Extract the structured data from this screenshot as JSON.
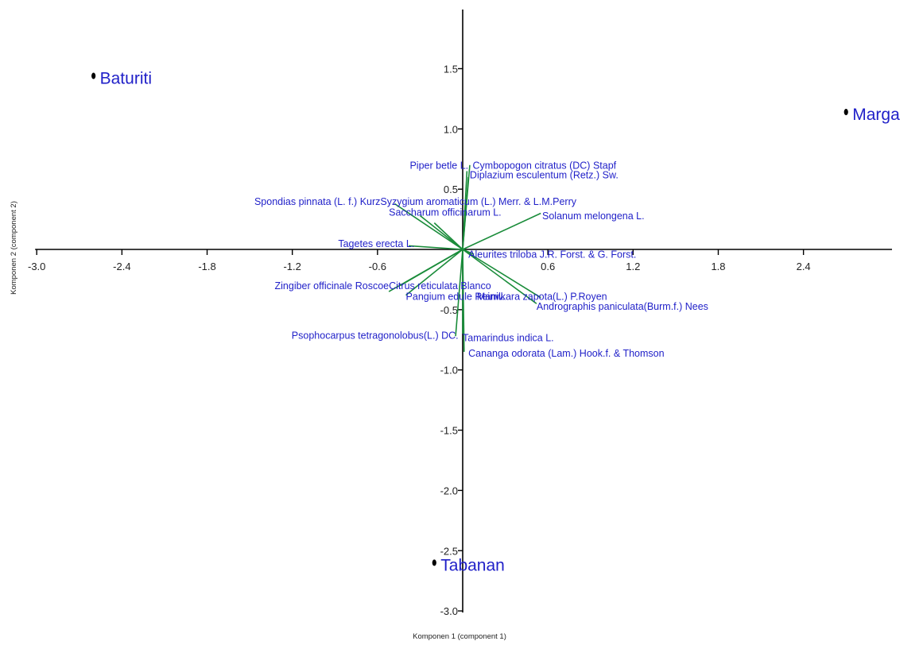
{
  "chart_data": {
    "type": "scatter",
    "title": "",
    "xlabel": "Komponen 1 (component 1)",
    "ylabel": "Komponen 2 (component 2)",
    "xlim": [
      -3.0,
      3.0
    ],
    "ylim": [
      -3.0,
      2.0
    ],
    "x_ticks": [
      -3.0,
      -2.4,
      -1.8,
      -1.2,
      -0.6,
      0.6,
      1.2,
      1.8,
      2.4
    ],
    "x_tick_labels": [
      "-3.0",
      "-2.4",
      "-1.8",
      "-1.2",
      "-0.6",
      "0.6",
      "1.2",
      "1.8",
      "2.4"
    ],
    "y_ticks": [
      1.5,
      1.0,
      0.5,
      -0.5,
      -1.0,
      -1.5,
      -2.0,
      -2.5,
      -3.0
    ],
    "y_tick_labels": [
      "1.5",
      "1.0",
      "0.5",
      "-0.5",
      "-1.0",
      "-1.5",
      "-2.0",
      "-2.5",
      "-3.0"
    ],
    "grid": false,
    "colors": {
      "points": "#000000",
      "labels": "#1f1fc8",
      "vectors": "#1a8c3a",
      "axes": "#000000"
    },
    "points": [
      {
        "label": "Baturiti",
        "x": -2.6,
        "y": 1.44
      },
      {
        "label": "Marga",
        "x": 2.7,
        "y": 1.14
      },
      {
        "label": "Tabanan",
        "x": -0.2,
        "y": -2.6
      }
    ],
    "loadings": [
      {
        "label": "Piper betle L.",
        "x": 0.03,
        "y": 0.65,
        "anchor": "end",
        "lx": 0.04,
        "ly": 0.67
      },
      {
        "label": "Cymbopogon citratus (DC) Stapf",
        "x": 0.05,
        "y": 0.7,
        "anchor": "start",
        "lx": 0.07,
        "ly": 0.67
      },
      {
        "label": "Diplazium esculentum (Retz.) Sw.",
        "x": 0.04,
        "y": 0.6,
        "anchor": "start",
        "lx": 0.05,
        "ly": 0.59
      },
      {
        "label": "Spondias pinnata (L. f.) Kurz",
        "x": -0.48,
        "y": 0.38,
        "anchor": "end",
        "lx": -0.58,
        "ly": 0.37
      },
      {
        "label": "Syzygium aromaticum (L.) Merr. & L.M.Perry",
        "x": -0.3,
        "y": 0.28,
        "anchor": "start",
        "lx": -0.58,
        "ly": 0.37
      },
      {
        "label": "Saccharum officinarum L.",
        "x": -0.2,
        "y": 0.22,
        "anchor": "start",
        "lx": -0.52,
        "ly": 0.28
      },
      {
        "label": "Solanum melongena L.",
        "x": 0.55,
        "y": 0.3,
        "anchor": "start",
        "lx": 0.56,
        "ly": 0.25
      },
      {
        "label": "Tagetes erecta L.",
        "x": -0.38,
        "y": 0.03,
        "anchor": "end",
        "lx": -0.34,
        "ly": 0.02
      },
      {
        "label": "Aleurites triloba J.R. Forst. & G. Forst.",
        "x": 0.08,
        "y": -0.04,
        "anchor": "start",
        "lx": 0.04,
        "ly": -0.07
      },
      {
        "label": "Zingiber officinale Roscoe",
        "x": -0.52,
        "y": -0.35,
        "anchor": "end",
        "lx": -0.52,
        "ly": -0.33
      },
      {
        "label": "Citrus reticulata Blanco",
        "x": -0.44,
        "y": -0.3,
        "anchor": "start",
        "lx": -0.52,
        "ly": -0.33
      },
      {
        "label": "Pangium edule Reinw.",
        "x": -0.4,
        "y": -0.38,
        "anchor": "start",
        "lx": -0.4,
        "ly": -0.42
      },
      {
        "label": "Manilkara zapota(L.) P.Royen",
        "x": 0.55,
        "y": -0.4,
        "anchor": "start",
        "lx": 0.1,
        "ly": -0.42
      },
      {
        "label": "Andrographis paniculata(Burm.f.) Nees",
        "x": 0.52,
        "y": -0.45,
        "anchor": "start",
        "lx": 0.52,
        "ly": -0.5
      },
      {
        "label": "Psophocarpus tetragonolobus(L.) DC.",
        "x": -0.05,
        "y": -0.72,
        "anchor": "end",
        "lx": -0.03,
        "ly": -0.74
      },
      {
        "label": "Tamarindus indica L.",
        "x": 0.0,
        "y": -0.7,
        "anchor": "start",
        "lx": 0.0,
        "ly": -0.76
      },
      {
        "label": "Cananga odorata (Lam.) Hook.f. & Thomson",
        "x": 0.01,
        "y": -0.85,
        "anchor": "start",
        "lx": 0.04,
        "ly": -0.89
      }
    ]
  }
}
